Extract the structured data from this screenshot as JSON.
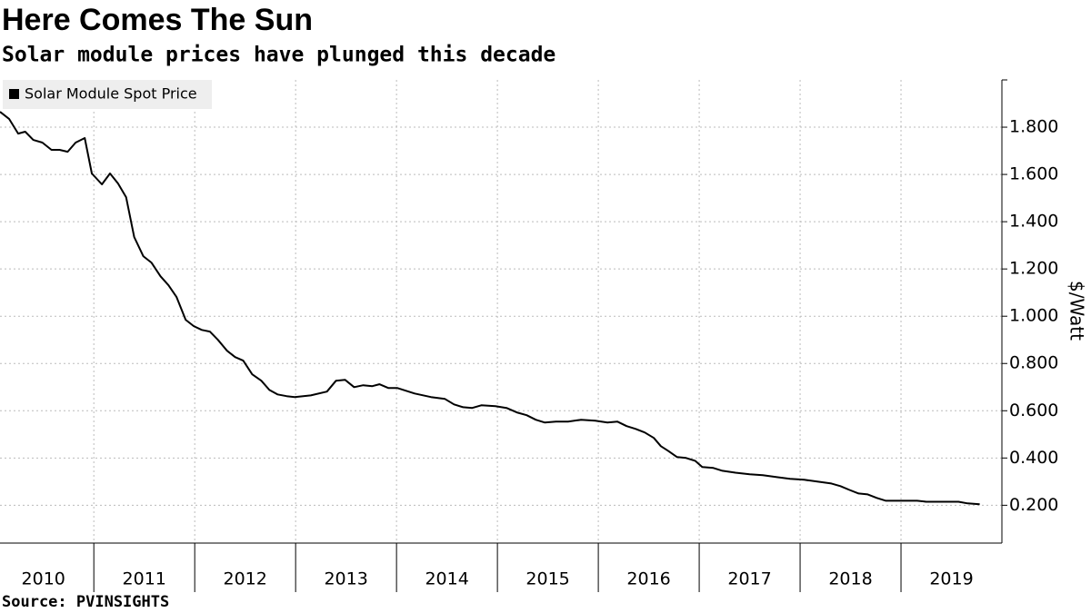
{
  "chart_data": {
    "type": "line",
    "title": "Here Comes The Sun",
    "subtitle": "Solar module prices have plunged this decade",
    "source": "Source: PVINSIGHTS",
    "y_axis_label": "$/Watt",
    "legend": "top-left",
    "grid": true,
    "xlim": [
      2010.07,
      2020.0
    ],
    "xticks": [
      {
        "value": 2010.5,
        "label": "2010"
      },
      {
        "value": 2011.5,
        "label": "2011"
      },
      {
        "value": 2012.5,
        "label": "2012"
      },
      {
        "value": 2013.5,
        "label": "2013"
      },
      {
        "value": 2014.5,
        "label": "2014"
      },
      {
        "value": 2015.5,
        "label": "2015"
      },
      {
        "value": 2016.5,
        "label": "2016"
      },
      {
        "value": 2017.5,
        "label": "2017"
      },
      {
        "value": 2018.5,
        "label": "2018"
      },
      {
        "value": 2019.5,
        "label": "2019"
      }
    ],
    "ylim": [
      0.04,
      2.0
    ],
    "yticks": [
      {
        "value": 0.2,
        "label": "0.200"
      },
      {
        "value": 0.4,
        "label": "0.400"
      },
      {
        "value": 0.6,
        "label": "0.600"
      },
      {
        "value": 0.8,
        "label": "0.800"
      },
      {
        "value": 1.0,
        "label": "1.000"
      },
      {
        "value": 1.2,
        "label": "1.200"
      },
      {
        "value": 1.4,
        "label": "1.400"
      },
      {
        "value": 1.6,
        "label": "1.600"
      },
      {
        "value": 1.8,
        "label": "1.800"
      }
    ],
    "x": [
      2010.07,
      2010.16,
      2010.25,
      2010.32,
      2010.4,
      2010.49,
      2010.58,
      2010.66,
      2010.74,
      2010.82,
      2010.91,
      2010.98,
      2011.08,
      2011.16,
      2011.24,
      2011.32,
      2011.4,
      2011.49,
      2011.57,
      2011.66,
      2011.74,
      2011.82,
      2011.91,
      2011.99,
      2012.07,
      2012.15,
      2012.23,
      2012.32,
      2012.4,
      2012.48,
      2012.57,
      2012.66,
      2012.74,
      2012.82,
      2012.91,
      2012.99,
      2013.15,
      2013.31,
      2013.4,
      2013.49,
      2013.58,
      2013.67,
      2013.76,
      2013.83,
      2013.92,
      2014.01,
      2014.18,
      2014.34,
      2014.48,
      2014.57,
      2014.66,
      2014.75,
      2014.84,
      2014.98,
      2015.09,
      2015.2,
      2015.29,
      2015.38,
      2015.47,
      2015.58,
      2015.7,
      2015.83,
      2015.97,
      2016.09,
      2016.19,
      2016.28,
      2016.37,
      2016.46,
      2016.55,
      2016.62,
      2016.69,
      2016.78,
      2016.87,
      2016.96,
      2017.03,
      2017.14,
      2017.23,
      2017.36,
      2017.5,
      2017.63,
      2017.77,
      2017.9,
      2018.04,
      2018.17,
      2018.31,
      2018.4,
      2018.49,
      2018.58,
      2018.67,
      2018.76,
      2018.85,
      2018.98,
      2019.16,
      2019.25,
      2019.43,
      2019.57,
      2019.66,
      2019.78
    ],
    "series": [
      {
        "name": "Solar Module Spot Price",
        "color": "#000000",
        "values": [
          1.865,
          1.835,
          1.773,
          1.781,
          1.746,
          1.735,
          1.704,
          1.704,
          1.696,
          1.735,
          1.754,
          1.604,
          1.558,
          1.604,
          1.562,
          1.504,
          1.335,
          1.254,
          1.227,
          1.169,
          1.131,
          1.081,
          0.985,
          0.958,
          0.942,
          0.935,
          0.9,
          0.854,
          0.827,
          0.812,
          0.754,
          0.727,
          0.688,
          0.669,
          0.662,
          0.658,
          0.665,
          0.681,
          0.727,
          0.731,
          0.7,
          0.708,
          0.704,
          0.712,
          0.696,
          0.696,
          0.673,
          0.658,
          0.65,
          0.627,
          0.615,
          0.612,
          0.623,
          0.619,
          0.612,
          0.592,
          0.581,
          0.562,
          0.55,
          0.554,
          0.554,
          0.562,
          0.558,
          0.55,
          0.554,
          0.535,
          0.523,
          0.508,
          0.485,
          0.45,
          0.431,
          0.404,
          0.4,
          0.388,
          0.362,
          0.358,
          0.346,
          0.338,
          0.331,
          0.327,
          0.319,
          0.312,
          0.308,
          0.3,
          0.292,
          0.281,
          0.265,
          0.25,
          0.246,
          0.231,
          0.219,
          0.219,
          0.219,
          0.215,
          0.215,
          0.215,
          0.208,
          0.204
        ]
      }
    ]
  }
}
